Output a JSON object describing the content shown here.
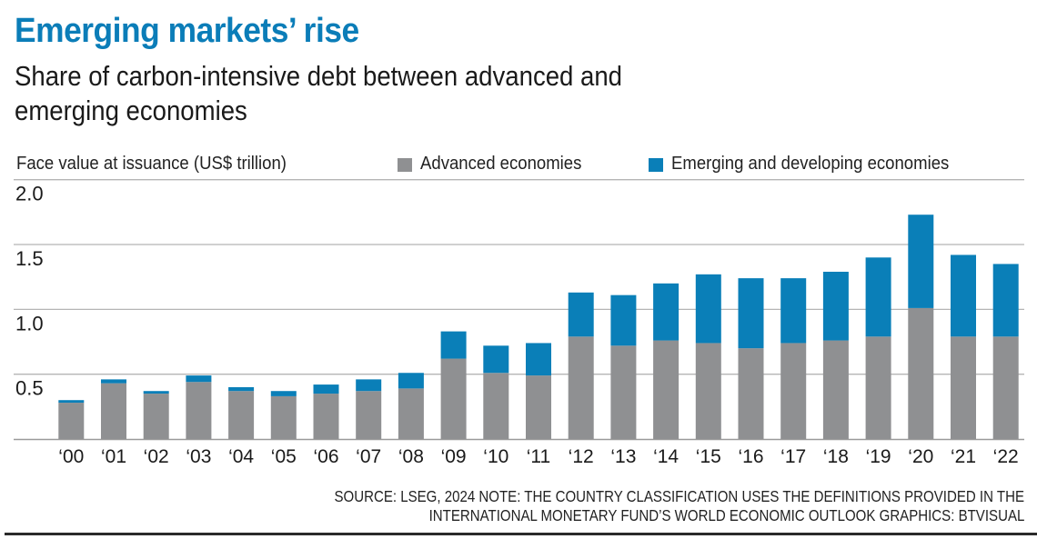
{
  "header": {
    "title": "Emerging markets’ rise",
    "subtitle_line1": "Share of carbon-intensive debt between advanced and",
    "subtitle_line2": "emerging economies"
  },
  "footer": {
    "source_line1": "SOURCE: LSEG, 2024 NOTE: THE COUNTRY CLASSIFICATION USES THE DEFINITIONS PROVIDED IN THE",
    "source_line2": "INTERNATIONAL MONETARY FUND’S WORLD ECONOMIC OUTLOOK   GRAPHICS: BTVISUAL"
  },
  "colors": {
    "title": "#0b7db8",
    "advanced": "#8f9092",
    "emerging": "#0a7fb8",
    "grid": "#b5b5b5",
    "baseline": "#9a9a9a"
  },
  "chart_data": {
    "type": "bar",
    "stacked": true,
    "title": "Emerging markets’ rise",
    "subtitle": "Share of carbon-intensive debt between advanced and emerging economies",
    "ylabel": "Face value at issuance (US$ trillion)",
    "xlabel": "",
    "ylim": [
      0,
      2.0
    ],
    "yticks": [
      0.5,
      1.0,
      1.5,
      2.0
    ],
    "ytick_labels": [
      "0.5",
      "1.0",
      "1.5",
      "2.0"
    ],
    "grid": true,
    "legend_position": "top-right",
    "categories": [
      "‘00",
      "‘01",
      "‘02",
      "‘03",
      "‘04",
      "‘05",
      "‘06",
      "‘07",
      "‘08",
      "‘09",
      "‘10",
      "‘11",
      "‘12",
      "‘13",
      "‘14",
      "‘15",
      "‘16",
      "‘17",
      "‘18",
      "‘19",
      "‘20",
      "‘21",
      "‘22"
    ],
    "series": [
      {
        "name": "Advanced economies",
        "color": "#8f9092",
        "values": [
          0.28,
          0.43,
          0.35,
          0.44,
          0.37,
          0.33,
          0.35,
          0.37,
          0.39,
          0.62,
          0.51,
          0.49,
          0.79,
          0.72,
          0.76,
          0.74,
          0.7,
          0.74,
          0.76,
          0.79,
          1.01,
          0.79,
          0.79
        ]
      },
      {
        "name": "Emerging and developing economies",
        "color": "#0a7fb8",
        "values": [
          0.02,
          0.03,
          0.02,
          0.05,
          0.03,
          0.04,
          0.07,
          0.09,
          0.12,
          0.21,
          0.21,
          0.25,
          0.34,
          0.39,
          0.44,
          0.53,
          0.54,
          0.5,
          0.53,
          0.61,
          0.72,
          0.63,
          0.56
        ]
      }
    ]
  }
}
